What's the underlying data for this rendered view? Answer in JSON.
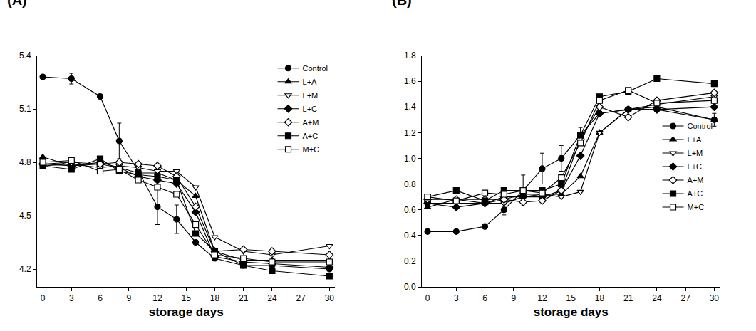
{
  "chart_data": [
    {
      "type": "line",
      "title": "(A)",
      "x_label": "storage days",
      "x": [
        0,
        3,
        6,
        8,
        10,
        12,
        14,
        16,
        18,
        21,
        24,
        30
      ],
      "xlim": [
        -0.6,
        30.6
      ],
      "xticks": [
        0,
        3,
        6,
        9,
        12,
        15,
        18,
        21,
        24,
        27,
        30
      ],
      "ylim": [
        4.1,
        5.4
      ],
      "yticks": [
        4.2,
        4.5,
        4.8,
        5.1,
        5.4
      ],
      "grid": false,
      "legend": "top right",
      "series": [
        {
          "name": "Control",
          "color": "#000000",
          "marker": "circle",
          "values": [
            5.28,
            5.27,
            5.17,
            4.92,
            4.75,
            4.55,
            4.48,
            4.35,
            4.26,
            4.22,
            4.22,
            4.2
          ],
          "error": [
            0.01,
            0.03,
            0.0,
            0.1,
            0.0,
            0.1,
            0.08,
            0.0,
            0.0,
            0.0,
            0.0,
            0.0
          ]
        },
        {
          "name": "L+A",
          "color": "#000000",
          "marker": "triangle-up",
          "values": [
            4.83,
            4.78,
            4.79,
            4.77,
            4.74,
            4.74,
            4.7,
            4.61,
            4.3,
            4.25,
            4.25,
            4.25
          ]
        },
        {
          "name": "L+M",
          "color": "#000000",
          "marker": "triangle-down-open",
          "values": [
            4.78,
            4.79,
            4.77,
            4.78,
            4.77,
            4.75,
            4.75,
            4.66,
            4.38,
            4.3,
            4.28,
            4.33
          ]
        },
        {
          "name": "L+C",
          "color": "#000000",
          "marker": "diamond",
          "values": [
            4.79,
            4.78,
            4.8,
            4.77,
            4.72,
            4.7,
            4.68,
            4.52,
            4.27,
            4.24,
            4.23,
            4.21
          ]
        },
        {
          "name": "A+M",
          "color": "#000000",
          "marker": "diamond-open",
          "values": [
            4.79,
            4.8,
            4.79,
            4.8,
            4.79,
            4.78,
            4.72,
            4.55,
            4.3,
            4.31,
            4.3,
            4.28
          ]
        },
        {
          "name": "A+C",
          "color": "#000000",
          "marker": "square",
          "values": [
            4.78,
            4.76,
            4.82,
            4.75,
            4.73,
            4.72,
            4.7,
            4.4,
            4.3,
            4.22,
            4.19,
            4.16
          ]
        },
        {
          "name": "M+C",
          "color": "#000000",
          "marker": "square-open",
          "values": [
            4.8,
            4.81,
            4.75,
            4.76,
            4.7,
            4.66,
            4.62,
            4.45,
            4.28,
            4.26,
            4.24,
            4.24
          ]
        }
      ]
    },
    {
      "type": "line",
      "title": "(B)",
      "x_label": "storage days",
      "x": [
        0,
        3,
        6,
        8,
        10,
        12,
        14,
        16,
        18,
        21,
        24,
        30
      ],
      "xlim": [
        -0.6,
        30.6
      ],
      "xticks": [
        0,
        3,
        6,
        9,
        12,
        15,
        18,
        21,
        24,
        27,
        30
      ],
      "ylim": [
        0,
        1.8
      ],
      "yticks": [
        {
          "value": 0,
          "label": "0.0"
        },
        0.2,
        0.4,
        0.6,
        0.8,
        {
          "value": 1,
          "label": "1.0"
        },
        1.2,
        1.4,
        1.6,
        1.8
      ],
      "grid": false,
      "legend": "right",
      "series": [
        {
          "name": "Control",
          "color": "#000000",
          "marker": "circle",
          "values": [
            0.43,
            0.43,
            0.47,
            0.6,
            0.75,
            0.92,
            1.0,
            1.18,
            1.35,
            1.38,
            1.38,
            1.3
          ],
          "error": [
            0.0,
            0.0,
            0.0,
            0.04,
            0.12,
            0.12,
            0.1,
            0.06,
            0.0,
            0.0,
            0.0,
            0.05
          ]
        },
        {
          "name": "L+A",
          "color": "#000000",
          "marker": "triangle-up",
          "values": [
            0.62,
            0.68,
            0.65,
            0.68,
            0.72,
            0.72,
            0.72,
            0.86,
            1.2,
            1.38,
            1.4,
            1.3
          ]
        },
        {
          "name": "L+M",
          "color": "#000000",
          "marker": "triangle-down-open",
          "values": [
            0.65,
            0.65,
            0.65,
            0.65,
            0.7,
            0.72,
            0.7,
            0.74,
            1.2,
            1.38,
            1.42,
            1.48
          ]
        },
        {
          "name": "L+C",
          "color": "#000000",
          "marker": "diamond",
          "values": [
            0.65,
            0.62,
            0.65,
            0.7,
            0.7,
            0.7,
            0.75,
            1.02,
            1.35,
            1.38,
            1.38,
            1.4
          ]
        },
        {
          "name": "A+M",
          "color": "#000000",
          "marker": "diamond-open",
          "values": [
            0.68,
            0.68,
            0.68,
            0.68,
            0.66,
            0.67,
            0.75,
            1.15,
            1.4,
            1.32,
            1.45,
            1.51
          ]
        },
        {
          "name": "A+C",
          "color": "#000000",
          "marker": "square",
          "values": [
            0.7,
            0.75,
            0.67,
            0.75,
            0.75,
            0.75,
            0.8,
            1.18,
            1.48,
            1.52,
            1.62,
            1.58
          ]
        },
        {
          "name": "M+C",
          "color": "#000000",
          "marker": "square-open",
          "values": [
            0.7,
            0.67,
            0.73,
            0.72,
            0.75,
            0.73,
            0.85,
            1.12,
            1.45,
            1.53,
            1.43,
            1.45
          ]
        }
      ]
    }
  ]
}
